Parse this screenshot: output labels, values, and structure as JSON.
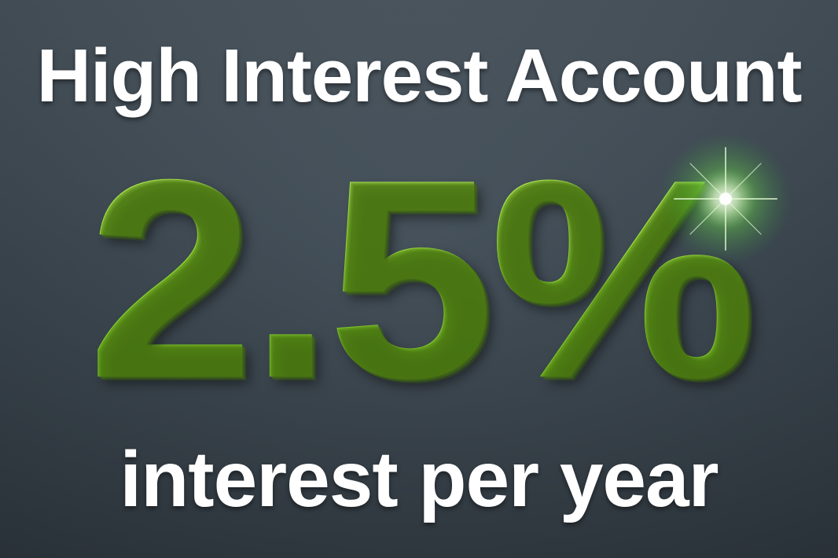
{
  "headline": "High Interest Account",
  "rate": "2.5%",
  "subline": "interest per year",
  "colors": {
    "background_top": "#4e5a64",
    "background_bottom": "#323c44",
    "text": "#ffffff",
    "rate_green": "#8ed334",
    "flare_green": "#7dff5a"
  }
}
